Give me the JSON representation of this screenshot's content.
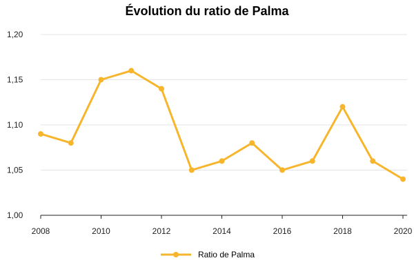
{
  "chart_data": {
    "type": "line",
    "title": "Évolution du ratio de Palma",
    "x": [
      2008,
      2009,
      2010,
      2011,
      2012,
      2013,
      2014,
      2015,
      2016,
      2017,
      2018,
      2019,
      2020
    ],
    "series": [
      {
        "name": "Ratio de Palma",
        "color": "#F7B52C",
        "values": [
          1.09,
          1.08,
          1.15,
          1.16,
          1.14,
          1.05,
          1.06,
          1.08,
          1.05,
          1.06,
          1.12,
          1.06,
          1.04
        ]
      }
    ],
    "xticks": [
      "2008",
      "2010",
      "2012",
      "2014",
      "2016",
      "2018",
      "2020"
    ],
    "yticks": [
      "1,00",
      "1,05",
      "1,10",
      "1,15",
      "1,20"
    ],
    "xlim": [
      2008,
      2020
    ],
    "ylim": [
      1.0,
      1.2
    ],
    "grid": "horizontal",
    "legend_position": "bottom-center"
  }
}
